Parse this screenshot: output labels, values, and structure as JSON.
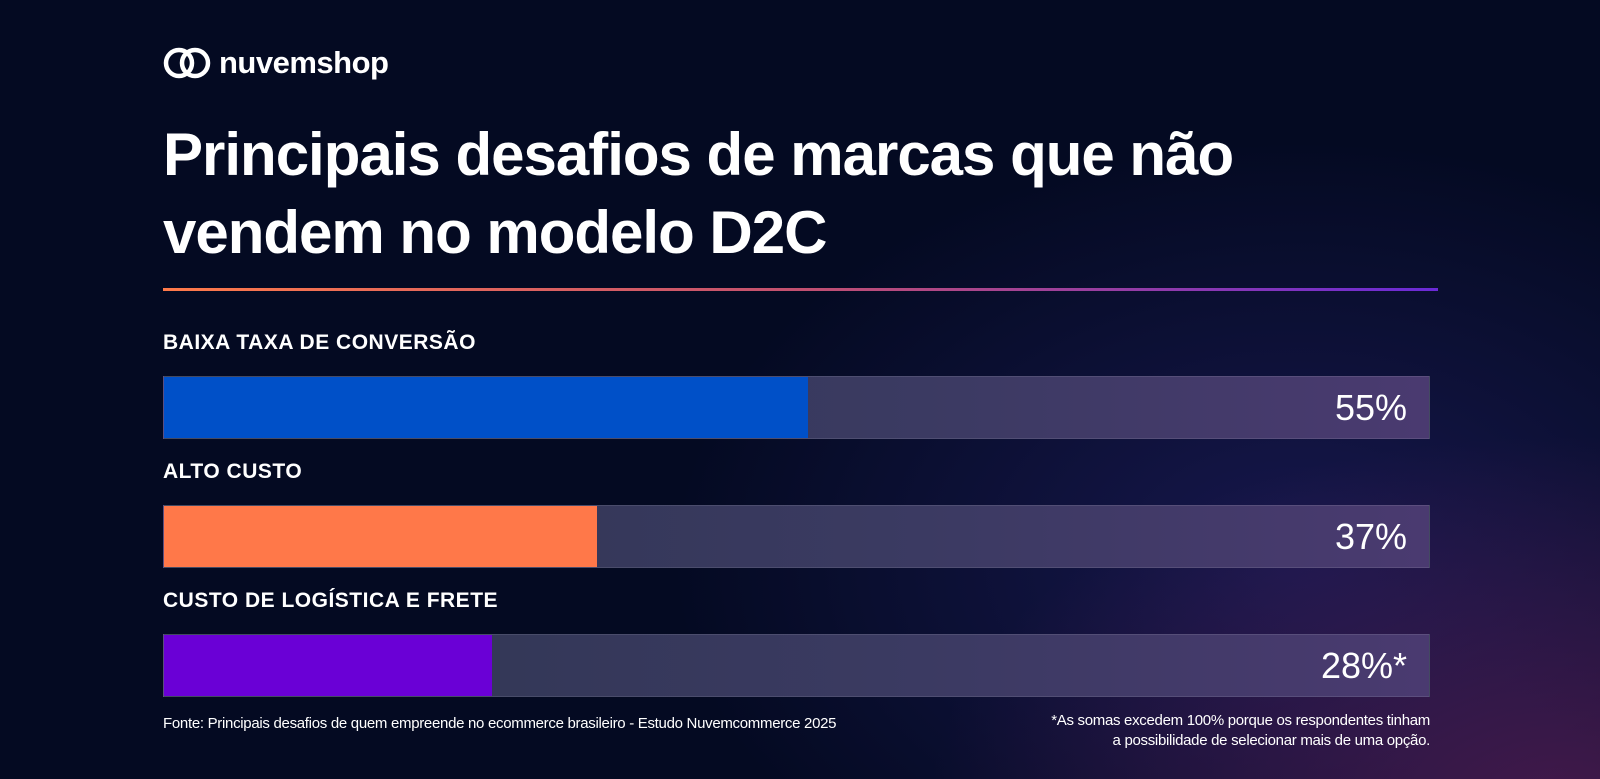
{
  "brand": {
    "name": "nuvemshop"
  },
  "chart_data": {
    "type": "bar",
    "orientation": "horizontal",
    "title": "Principais desafios de marcas que não vendem no modelo D2C",
    "categories": [
      "BAIXA TAXA DE CONVERSÃO",
      "ALTO CUSTO",
      "CUSTO DE LOGÍSTICA E FRETE"
    ],
    "values": [
      55,
      37,
      28
    ],
    "value_labels": [
      "55%",
      "37%",
      "28%*"
    ],
    "colors": [
      "#0050c8",
      "#ff7849",
      "#6a00d6"
    ],
    "xlim": [
      0,
      100
    ],
    "grid": false,
    "legend": "none"
  },
  "footer": {
    "source": "Fonte: Principais desafios de quem empreende no ecommerce brasileiro - Estudo Nuvemcommerce 2025",
    "note_line1": "*As somas excedem 100% porque os respondentes tinham",
    "note_line2": "a possibilidade de selecionar mais de uma opção."
  }
}
